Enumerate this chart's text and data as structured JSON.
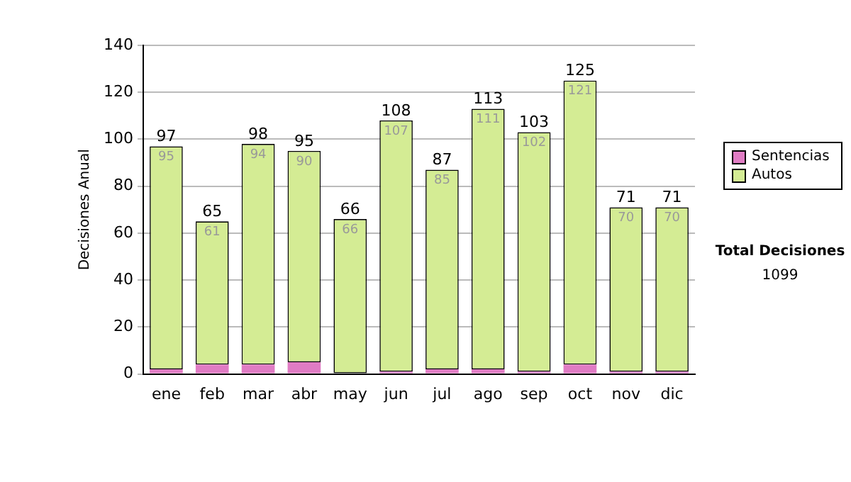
{
  "chart_data": {
    "type": "bar",
    "stacked": true,
    "ylabel": "Decisiones Anual",
    "categories": [
      "ene",
      "feb",
      "mar",
      "abr",
      "may",
      "jun",
      "jul",
      "ago",
      "sep",
      "oct",
      "nov",
      "dic"
    ],
    "series": [
      {
        "name": "Sentencias",
        "color": "#e07cc4",
        "values": [
          2,
          4,
          4,
          5,
          0,
          1,
          2,
          2,
          1,
          4,
          1,
          1
        ]
      },
      {
        "name": "Autos",
        "color": "#d4ec94",
        "values": [
          95,
          61,
          94,
          90,
          66,
          107,
          85,
          111,
          102,
          121,
          70,
          70
        ],
        "value_labels": [
          "95",
          "61",
          "94",
          "90",
          "66",
          "107",
          "85",
          "111",
          "102",
          "121",
          "70",
          "70"
        ]
      }
    ],
    "totals": [
      "97",
      "65",
      "98",
      "95",
      "66",
      "108",
      "87",
      "113",
      "103",
      "125",
      "71",
      "71"
    ],
    "ylim": [
      0,
      140
    ],
    "yticks": [
      0,
      20,
      40,
      60,
      80,
      100,
      120,
      140
    ],
    "grid": "y",
    "legend": "right",
    "annotations": [
      "Total Decisiones",
      "1099"
    ]
  }
}
